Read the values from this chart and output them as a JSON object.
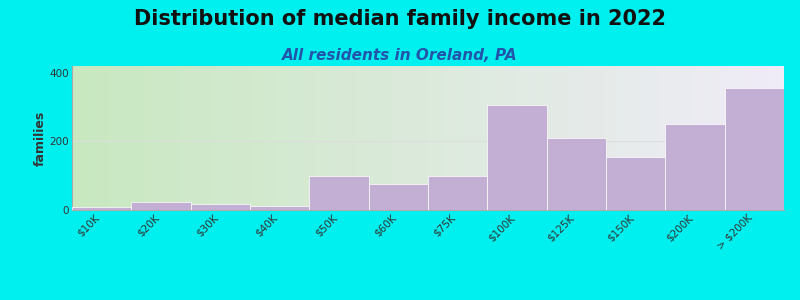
{
  "title": "Distribution of median family income in 2022",
  "subtitle": "All residents in Oreland, PA",
  "ylabel": "families",
  "categories": [
    "$10K",
    "$20K",
    "$30K",
    "$40K",
    "$50K",
    "$60K",
    "$75K",
    "$100K",
    "$125K",
    "$150K",
    "$200K",
    "> $200K"
  ],
  "values": [
    10,
    22,
    17,
    12,
    100,
    75,
    100,
    305,
    210,
    155,
    250,
    355
  ],
  "bar_color": "#c4afd4",
  "fig_bg_color": "#00f0f0",
  "ylim": [
    0,
    420
  ],
  "yticks": [
    0,
    200,
    400
  ],
  "title_fontsize": 15,
  "subtitle_fontsize": 11,
  "ylabel_fontsize": 9,
  "tick_fontsize": 7.5,
  "gradient_left": "#c8e8c0",
  "gradient_right": "#f0ecf8"
}
